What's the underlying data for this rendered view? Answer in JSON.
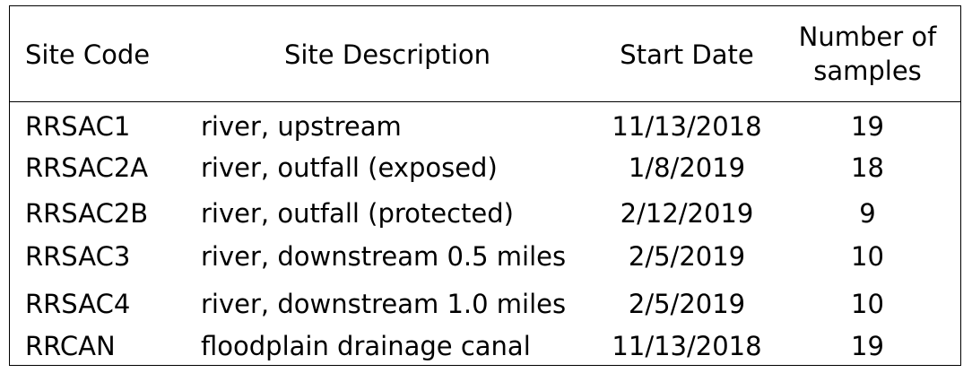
{
  "table": {
    "headers": [
      "Site Code",
      "Site Description",
      "Start Date",
      "Number of samples"
    ],
    "rows": [
      {
        "site_code": "RRSAC1",
        "description": "river, upstream",
        "start_date": "11/13/2018",
        "samples": "19"
      },
      {
        "site_code": "RRSAC2A",
        "description": "river, outfall (exposed)",
        "start_date": "1/8/2019",
        "samples": "18"
      },
      {
        "site_code": "RRSAC2B",
        "description": "river, outfall (protected)",
        "start_date": "2/12/2019",
        "samples": "9"
      },
      {
        "site_code": "RRSAC3",
        "description": "river, downstream 0.5 miles",
        "start_date": "2/5/2019",
        "samples": "10"
      },
      {
        "site_code": "RRSAC4",
        "description": "river, downstream 1.0 miles",
        "start_date": "2/5/2019",
        "samples": "10"
      },
      {
        "site_code": "RRCAN",
        "description": "floodplain drainage canal",
        "start_date": "11/13/2018",
        "samples": "19"
      }
    ]
  }
}
